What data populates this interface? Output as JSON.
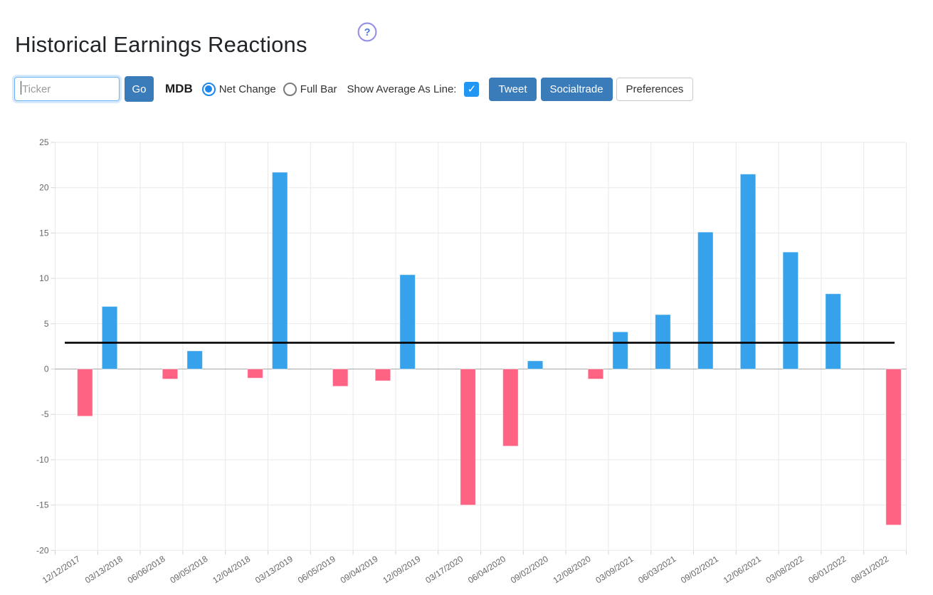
{
  "header": {
    "title": "Historical Earnings Reactions",
    "help_icon_glyph": "?"
  },
  "toolbar": {
    "ticker_placeholder": "Ticker",
    "go_label": "Go",
    "ticker_symbol": "MDB",
    "radio_options": [
      {
        "label": "Net Change",
        "selected": true
      },
      {
        "label": "Full Bar",
        "selected": false
      }
    ],
    "show_average_label": "Show Average As Line:",
    "show_average_checked": true,
    "check_glyph": "✓",
    "tweet_label": "Tweet",
    "socialtrade_label": "Socialtrade",
    "preferences_label": "Preferences"
  },
  "colors": {
    "positive_bar": "#36a2eb",
    "negative_bar": "#ff6384",
    "average_line": "#000000",
    "button_blue": "#3a7cb9",
    "radio_blue": "#1e87ea",
    "checkbox_blue": "#2196f3",
    "help_ring": "#968fe6",
    "help_question": "#4a7ed2",
    "gridline": "#e9e9e9",
    "zero_line": "#a8a8a8",
    "tick_label": "#666666"
  },
  "chart_data": {
    "type": "bar",
    "title": "",
    "xlabel": "",
    "ylabel": "",
    "categories": [
      "12/12/2017",
      "03/13/2018",
      "06/06/2018",
      "09/05/2018",
      "12/04/2018",
      "03/13/2019",
      "06/05/2019",
      "09/04/2019",
      "12/09/2019",
      "03/17/2020",
      "06/04/2020",
      "09/02/2020",
      "12/08/2020",
      "03/09/2021",
      "06/03/2021",
      "09/02/2021",
      "12/06/2021",
      "03/08/2022",
      "06/01/2022",
      "08/31/2022"
    ],
    "values": [
      -5.2,
      6.9,
      -1.1,
      2.0,
      -1.0,
      21.7,
      -1.9,
      -1.3,
      10.4,
      -15.0,
      -8.5,
      0.9,
      -1.1,
      4.1,
      6.0,
      15.1,
      21.5,
      12.9,
      8.3,
      -17.2
    ],
    "average_value": 2.9,
    "ylim": [
      -20,
      25
    ],
    "ytick_step": 5,
    "grid": true,
    "legend": "none",
    "positive_color": "#36a2eb",
    "negative_color": "#ff6384",
    "average_line_color": "#000000"
  }
}
